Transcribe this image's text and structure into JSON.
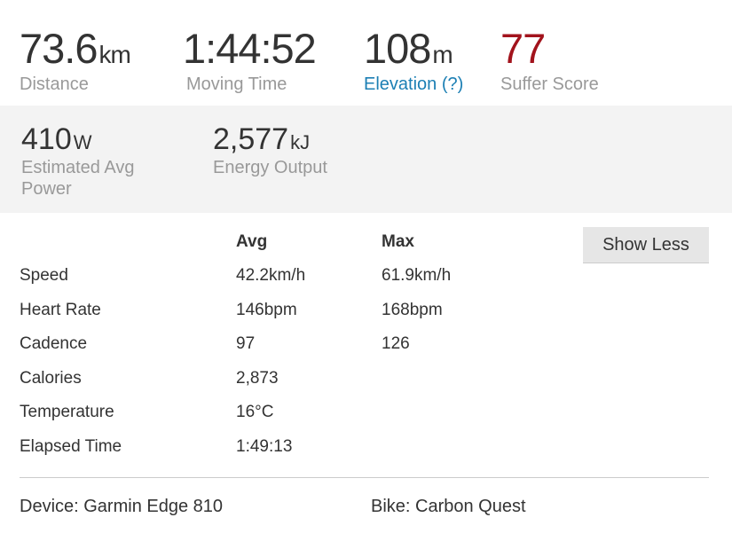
{
  "top_stats": [
    {
      "value": "73.6",
      "unit": "km",
      "label": "Distance"
    },
    {
      "value": "1:44:52",
      "unit": "",
      "label": "Moving Time"
    },
    {
      "value": "108",
      "unit": "m",
      "label": "Elevation (?)"
    },
    {
      "value": "77",
      "unit": "",
      "label": "Suffer Score"
    }
  ],
  "panel_stats": [
    {
      "value": "410",
      "unit": "W",
      "label": "Estimated Avg Power"
    },
    {
      "value": "2,577",
      "unit": "kJ",
      "label": "Energy Output"
    }
  ],
  "colors": {
    "elevation_link": "#1c7fb4",
    "suffer_score": "#a2131c"
  },
  "table": {
    "headers": {
      "avg": "Avg",
      "max": "Max"
    },
    "rows": [
      {
        "label": "Speed",
        "avg": "42.2km/h",
        "max": "61.9km/h"
      },
      {
        "label": "Heart Rate",
        "avg": "146bpm",
        "max": "168bpm"
      },
      {
        "label": "Cadence",
        "avg": "97",
        "max": "126"
      },
      {
        "label": "Calories",
        "avg": "2,873",
        "max": ""
      },
      {
        "label": "Temperature",
        "avg": "16°C",
        "max": ""
      },
      {
        "label": "Elapsed Time",
        "avg": "1:49:13",
        "max": ""
      }
    ]
  },
  "show_less_label": "Show Less",
  "footer": {
    "device": "Device: Garmin Edge 810",
    "bike": "Bike: Carbon Quest"
  }
}
